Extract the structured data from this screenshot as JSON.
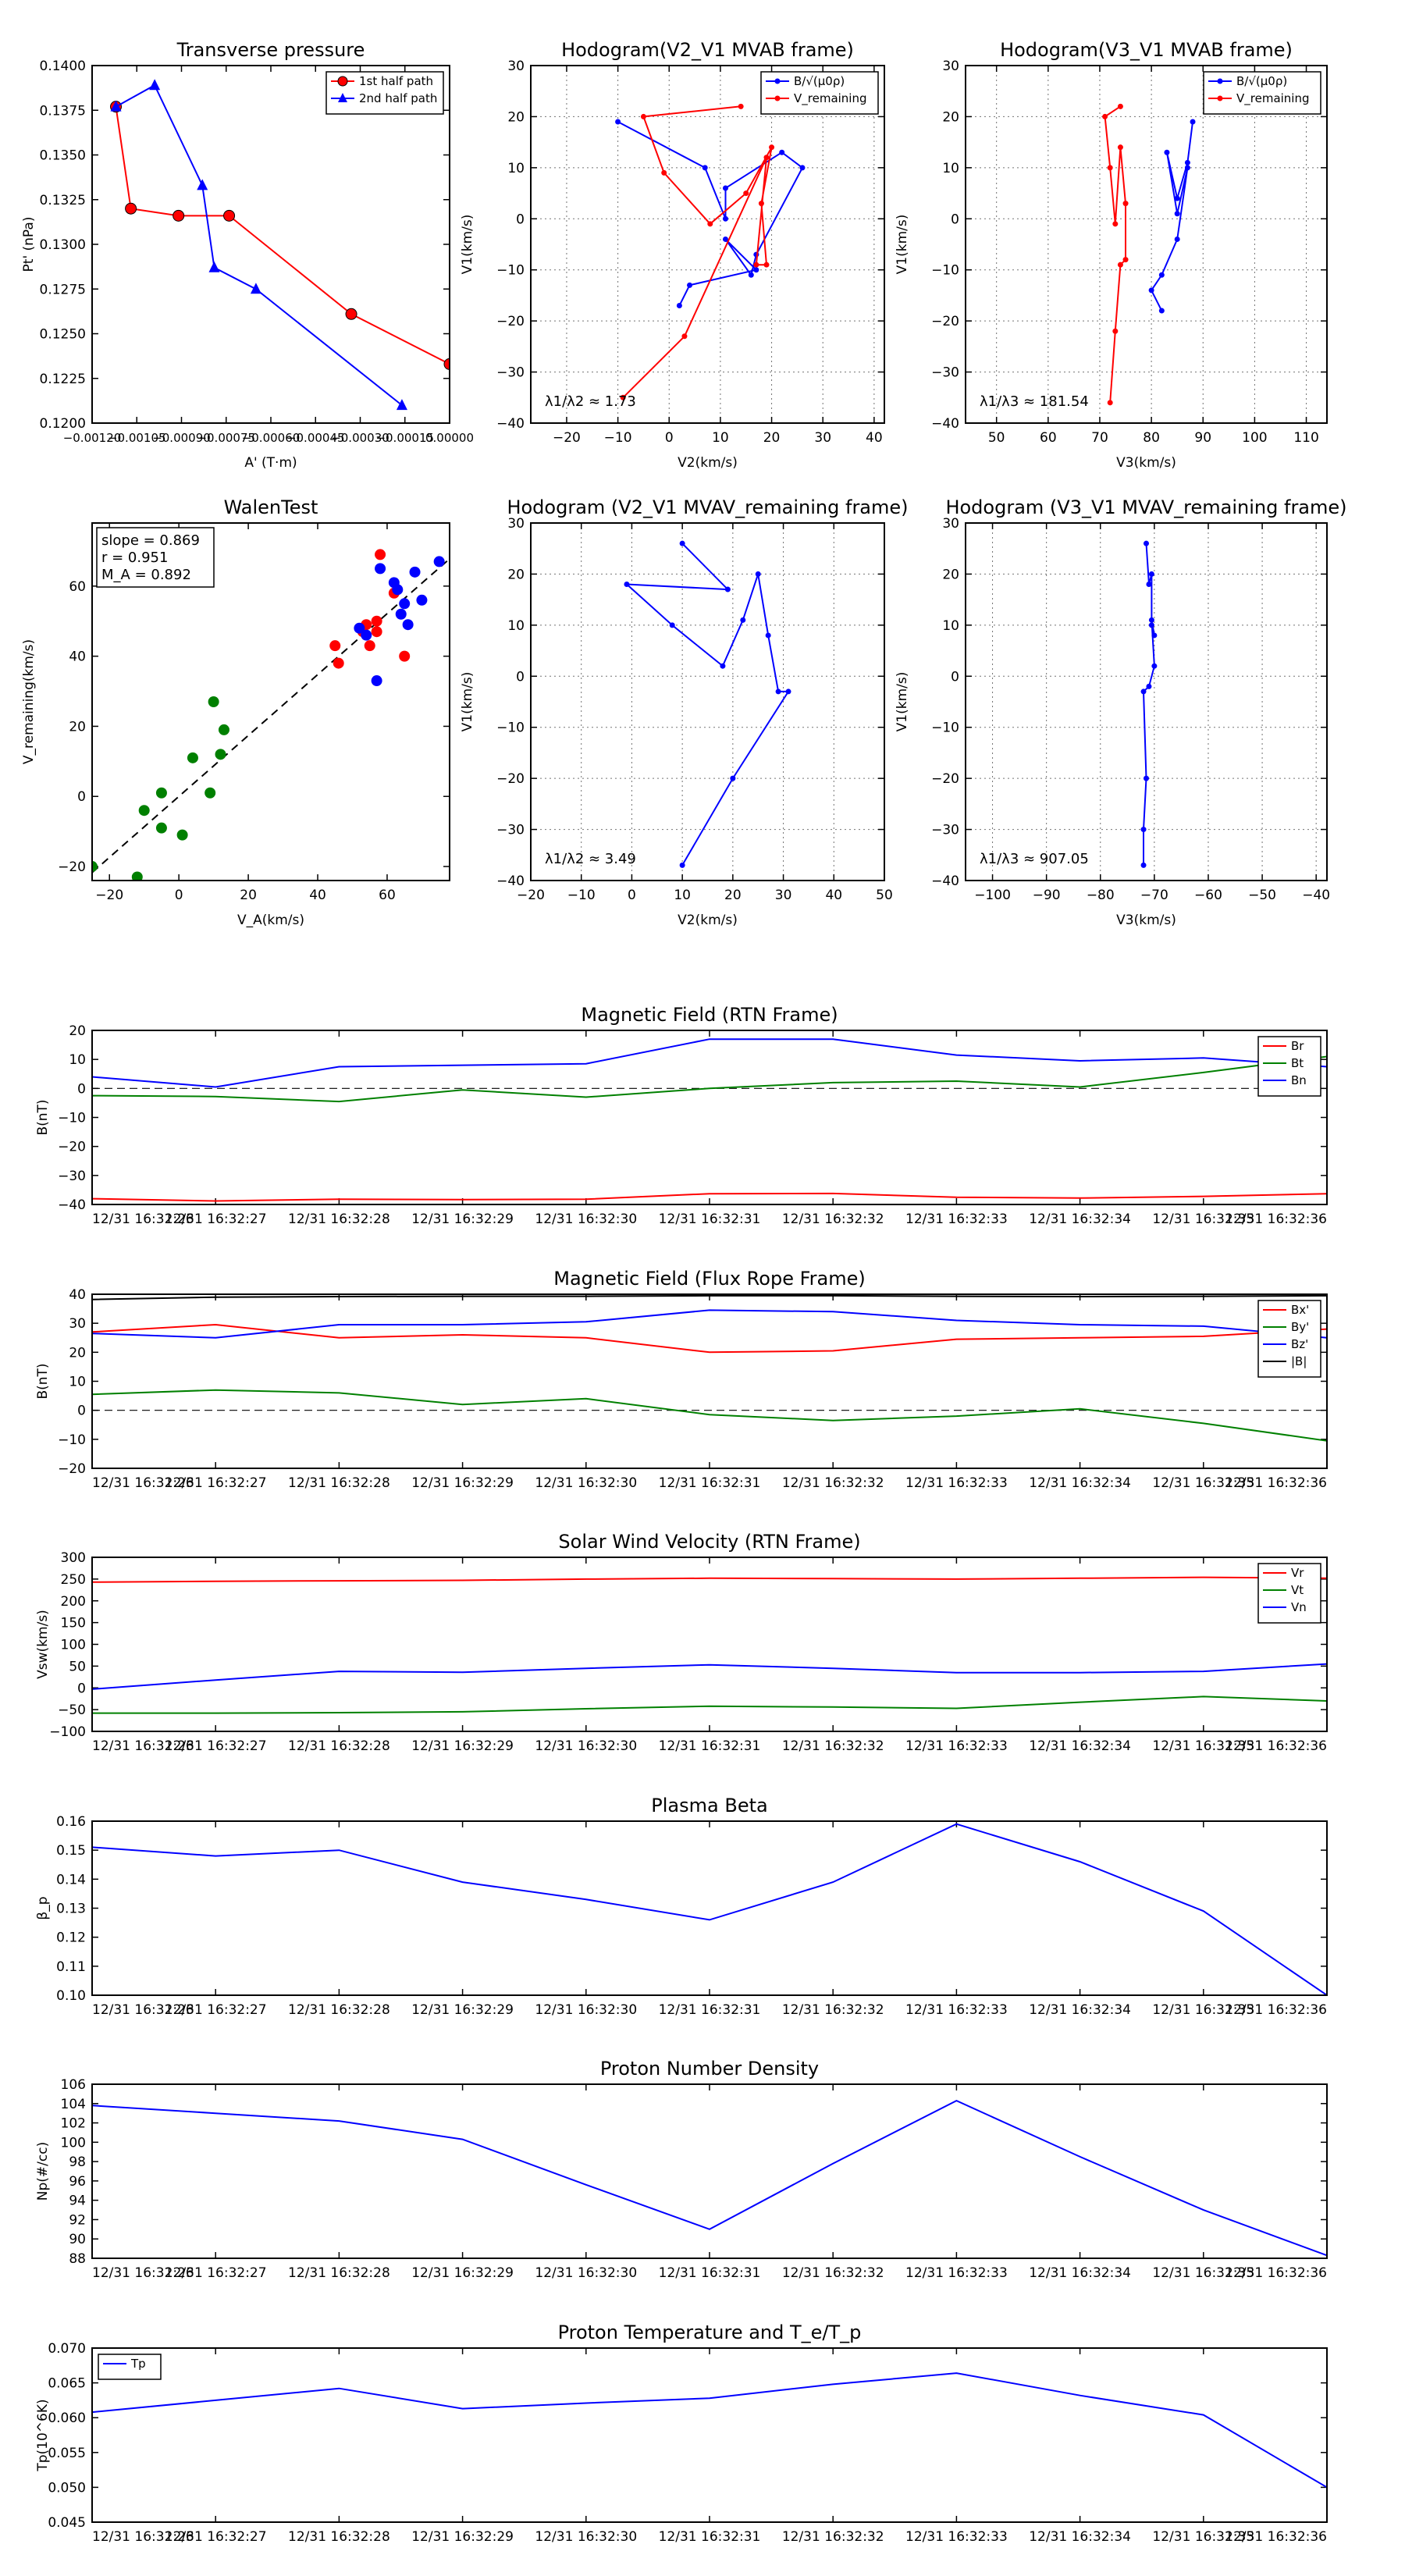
{
  "colors": {
    "red": "#ff0000",
    "green": "#008000",
    "blue": "#0000ff",
    "black": "#000000"
  },
  "chart_data": [
    {
      "id": "tp",
      "type": "line",
      "title": "Transverse pressure",
      "xlabel": "A' (T·m)",
      "ylabel": "Pt' (nPa)",
      "xlim": [
        -0.0012,
        0.0
      ],
      "ylim": [
        0.12,
        0.14
      ],
      "xticks": [
        -0.0012,
        -0.00105,
        -0.0009,
        -0.00075,
        -0.0006,
        -0.00045,
        -0.0003,
        -0.00015,
        0.0
      ],
      "xticklabels": [
        "−0.00120",
        "−0.00105",
        "−0.00090",
        "−0.00075",
        "−0.00060",
        "−0.00045",
        "−0.00030",
        "−0.00015",
        "0.00000"
      ],
      "yticks": [
        0.12,
        0.1225,
        0.125,
        0.1275,
        0.13,
        0.1325,
        0.135,
        0.1375,
        0.14
      ],
      "yticklabels": [
        "0.1200",
        "0.1225",
        "0.1250",
        "0.1275",
        "0.1300",
        "0.1325",
        "0.1350",
        "0.1375",
        "0.1400"
      ],
      "grid": false,
      "legend": "top-right",
      "series": [
        {
          "name": "1st half path",
          "color": "#ff0000",
          "marker": "circle",
          "x": [
            -0.00112,
            -0.00107,
            -0.00091,
            -0.00074,
            -0.00033,
            0.0
          ],
          "y": [
            0.1377,
            0.132,
            0.1316,
            0.1316,
            0.1261,
            0.1233
          ]
        },
        {
          "name": "2nd half path",
          "color": "#0000ff",
          "marker": "triangle",
          "x": [
            -0.00112,
            -0.00099,
            -0.00083,
            -0.00079,
            -0.00065,
            -0.00016
          ],
          "y": [
            0.1377,
            0.1389,
            0.1333,
            0.1287,
            0.1275,
            0.121
          ]
        }
      ]
    },
    {
      "id": "h1",
      "type": "line",
      "title": "Hodogram(V2_V1 MVAB frame)",
      "xlabel": "V2(km/s)",
      "ylabel": "V1(km/s)",
      "xlim": [
        -27,
        42
      ],
      "ylim": [
        -40,
        30
      ],
      "xticks": [
        -20,
        -10,
        0,
        10,
        20,
        30,
        40
      ],
      "yticks": [
        -40,
        -30,
        -20,
        -10,
        0,
        10,
        20,
        30
      ],
      "grid": true,
      "legend": "top-right",
      "annotation": "λ1/λ2 ≈ 1.73",
      "series": [
        {
          "name": "B/√(μ0ρ)",
          "color": "#0000ff",
          "marker": "dot",
          "x": [
            -10,
            7,
            11,
            11,
            22,
            26,
            17,
            16,
            11,
            17,
            4,
            2
          ],
          "y": [
            19,
            10,
            0,
            6,
            13,
            10,
            -7,
            -11,
            -4,
            -10,
            -13,
            -17
          ]
        },
        {
          "name": "V_remaining",
          "color": "#ff0000",
          "marker": "dot",
          "x": [
            14,
            -5,
            -1,
            8,
            15,
            20,
            18,
            19,
            17,
            19,
            3,
            -9
          ],
          "y": [
            22,
            20,
            9,
            -1,
            5,
            14,
            3,
            -9,
            -9,
            12,
            -23,
            -35
          ]
        }
      ]
    },
    {
      "id": "h2",
      "type": "line",
      "title": "Hodogram(V3_V1 MVAB frame)",
      "xlabel": "V3(km/s)",
      "ylabel": "V1(km/s)",
      "xlim": [
        44,
        114
      ],
      "ylim": [
        -40,
        30
      ],
      "xticks": [
        50,
        60,
        70,
        80,
        90,
        100,
        110
      ],
      "yticks": [
        -40,
        -30,
        -20,
        -10,
        0,
        10,
        20,
        30
      ],
      "grid": true,
      "legend": "top-right",
      "annotation": "λ1/λ3 ≈ 181.54",
      "series": [
        {
          "name": "B/√(μ0ρ)",
          "color": "#0000ff",
          "marker": "dot",
          "x": [
            88,
            87,
            85,
            83,
            85,
            87,
            85,
            82,
            80,
            82
          ],
          "y": [
            19,
            11,
            4,
            13,
            1,
            10,
            -4,
            -11,
            -14,
            -18
          ]
        },
        {
          "name": "V_remaining",
          "color": "#ff0000",
          "marker": "dot",
          "x": [
            74,
            71,
            72,
            73,
            74,
            75,
            75,
            74,
            73,
            72
          ],
          "y": [
            22,
            20,
            10,
            -1,
            14,
            3,
            -8,
            -9,
            -22,
            -36
          ]
        }
      ]
    },
    {
      "id": "walen",
      "type": "scatter",
      "title": "WalenTest",
      "xlabel": "V_A(km/s)",
      "ylabel": "V_remaining(km/s)",
      "xlim": [
        -25,
        78
      ],
      "ylim": [
        -24,
        78
      ],
      "xticks": [
        -20,
        0,
        20,
        40,
        60
      ],
      "yticks": [
        -20,
        0,
        20,
        40,
        60
      ],
      "grid": false,
      "stats": [
        "slope = 0.869",
        "r = 0.951",
        "M_A = 0.892"
      ],
      "fit": {
        "slope": 0.869,
        "intercept": 0,
        "color": "#000000"
      },
      "series": [
        {
          "name": "green",
          "color": "#008000",
          "x": [
            -25,
            -12,
            -10,
            -5,
            -5,
            1,
            4,
            9,
            10,
            12,
            13
          ],
          "y": [
            -20,
            -23,
            -4,
            1,
            -9,
            -11,
            11,
            1,
            27,
            12,
            19
          ]
        },
        {
          "name": "red",
          "color": "#ff0000",
          "x": [
            45,
            46,
            53,
            54,
            55,
            57,
            57,
            58,
            62,
            65
          ],
          "y": [
            43,
            38,
            47,
            49,
            43,
            47,
            50,
            69,
            58,
            40
          ]
        },
        {
          "name": "blue",
          "color": "#0000ff",
          "x": [
            52,
            54,
            57,
            58,
            62,
            63,
            64,
            65,
            66,
            68,
            70,
            75
          ],
          "y": [
            48,
            46,
            33,
            65,
            61,
            59,
            52,
            55,
            49,
            64,
            56,
            67
          ]
        }
      ]
    },
    {
      "id": "h3",
      "type": "line",
      "title": "Hodogram (V2_V1 MVAV_remaining frame)",
      "xlabel": "V2(km/s)",
      "ylabel": "V1(km/s)",
      "xlim": [
        -20,
        50
      ],
      "ylim": [
        -40,
        30
      ],
      "xticks": [
        -20,
        -10,
        0,
        10,
        20,
        30,
        40,
        50
      ],
      "yticks": [
        -40,
        -30,
        -20,
        -10,
        0,
        10,
        20,
        30
      ],
      "grid": true,
      "annotation": "λ1/λ2 ≈ 3.49",
      "series": [
        {
          "name": "blue",
          "color": "#0000ff",
          "marker": "dot",
          "x": [
            10,
            19,
            -1,
            8,
            18,
            22,
            25,
            27,
            29,
            31,
            20,
            10
          ],
          "y": [
            26,
            17,
            18,
            10,
            2,
            11,
            20,
            8,
            -3,
            -3,
            -20,
            -37
          ]
        }
      ]
    },
    {
      "id": "h4",
      "type": "line",
      "title": "Hodogram (V3_V1 MVAV_remaining frame)",
      "xlabel": "V3(km/s)",
      "ylabel": "V1(km/s)",
      "xlim": [
        -105,
        -38
      ],
      "ylim": [
        -40,
        30
      ],
      "xticks": [
        -100,
        -90,
        -80,
        -70,
        -60,
        -50,
        -40
      ],
      "yticks": [
        -40,
        -30,
        -20,
        -10,
        0,
        10,
        20,
        30
      ],
      "grid": true,
      "annotation": "λ1/λ3 ≈ 907.05",
      "series": [
        {
          "name": "blue",
          "color": "#0000ff",
          "marker": "dot",
          "x": [
            -71.5,
            -71,
            -70.5,
            -70.5,
            -70,
            -70.5,
            -70,
            -71,
            -72,
            -71.5,
            -72,
            -72
          ],
          "y": [
            26,
            18,
            20,
            10,
            8,
            11,
            2,
            -2,
            -3,
            -20,
            -30,
            -37
          ]
        }
      ]
    },
    {
      "id": "b_rtn",
      "type": "line",
      "title": "Magnetic Field (RTN Frame)",
      "xlabel": "",
      "ylabel": "B(nT)",
      "ylim": [
        -40,
        20
      ],
      "yticks": [
        -40,
        -30,
        -20,
        -10,
        0,
        10,
        20
      ],
      "zero_line": true,
      "grid": false,
      "legend": "top-right",
      "series": [
        {
          "name": "Br",
          "color": "#ff0000",
          "values": [
            -38,
            -38.8,
            -38.2,
            -38.3,
            -38.2,
            -36.3,
            -36.2,
            -37.5,
            -37.8,
            -37.2,
            -36.3
          ]
        },
        {
          "name": "Bt",
          "color": "#008000",
          "values": [
            -2.5,
            -2.8,
            -4.5,
            -0.5,
            -3,
            0,
            2,
            2.5,
            0.5,
            5.5,
            11
          ]
        },
        {
          "name": "Bn",
          "color": "#0000ff",
          "values": [
            4,
            0.5,
            7.5,
            8,
            8.5,
            17,
            17,
            11.5,
            9.5,
            10.5,
            7.5
          ]
        }
      ]
    },
    {
      "id": "b_fr",
      "type": "line",
      "title": "Magnetic Field (Flux Rope Frame)",
      "xlabel": "",
      "ylabel": "B(nT)",
      "ylim": [
        -20,
        40
      ],
      "yticks": [
        -20,
        -10,
        0,
        10,
        20,
        30,
        40
      ],
      "zero_line": true,
      "grid": false,
      "legend": "top-right",
      "series": [
        {
          "name": "Bx'",
          "color": "#ff0000",
          "values": [
            27,
            29.5,
            25,
            26,
            25,
            20,
            20.5,
            24.5,
            25,
            25.5,
            28
          ]
        },
        {
          "name": "By'",
          "color": "#008000",
          "values": [
            5.5,
            7,
            6,
            2,
            4,
            -1.5,
            -3.5,
            -2,
            0.5,
            -4.5,
            -10.5
          ]
        },
        {
          "name": "Bz'",
          "color": "#0000ff",
          "values": [
            26.5,
            25,
            29.5,
            29.5,
            30.5,
            34.5,
            34,
            31,
            29.5,
            29,
            25
          ]
        },
        {
          "name": "|B|",
          "color": "#000000",
          "values": [
            38.2,
            39,
            39.2,
            39.3,
            39.3,
            39.5,
            39.5,
            39.3,
            39.2,
            39.3,
            39.5
          ]
        }
      ]
    },
    {
      "id": "vsw",
      "type": "line",
      "title": "Solar Wind Velocity (RTN Frame)",
      "xlabel": "",
      "ylabel": "Vsw(km/s)",
      "ylim": [
        -100,
        300
      ],
      "yticks": [
        -100,
        -50,
        0,
        50,
        100,
        150,
        200,
        250,
        300
      ],
      "grid": false,
      "legend": "top-right",
      "series": [
        {
          "name": "Vr",
          "color": "#ff0000",
          "values": [
            243,
            245,
            246,
            247,
            250,
            252,
            251,
            250,
            252,
            254,
            252
          ]
        },
        {
          "name": "Vt",
          "color": "#008000",
          "values": [
            -58,
            -58,
            -57,
            -55,
            -48,
            -42,
            -44,
            -47,
            -33,
            -20,
            -30
          ]
        },
        {
          "name": "Vn",
          "color": "#0000ff",
          "values": [
            -3,
            18,
            38,
            36,
            45,
            53,
            45,
            35,
            35,
            38,
            55
          ]
        }
      ]
    },
    {
      "id": "beta",
      "type": "line",
      "title": "Plasma Beta",
      "xlabel": "",
      "ylabel": "β_p",
      "ylim": [
        0.1,
        0.16
      ],
      "yticks": [
        0.1,
        0.11,
        0.12,
        0.13,
        0.14,
        0.15,
        0.16
      ],
      "yticklabels": [
        "0.10",
        "0.11",
        "0.12",
        "0.13",
        "0.14",
        "0.15",
        "0.16"
      ],
      "grid": false,
      "series": [
        {
          "name": "beta",
          "color": "#0000ff",
          "values": [
            0.151,
            0.148,
            0.15,
            0.139,
            0.133,
            0.126,
            0.139,
            0.159,
            0.146,
            0.129,
            0.1
          ]
        }
      ]
    },
    {
      "id": "np",
      "type": "line",
      "title": "Proton Number Density",
      "xlabel": "",
      "ylabel": "Np(#/cc)",
      "ylim": [
        88,
        106
      ],
      "yticks": [
        88,
        90,
        92,
        94,
        96,
        98,
        100,
        102,
        104,
        106
      ],
      "grid": false,
      "series": [
        {
          "name": "Np",
          "color": "#0000ff",
          "values": [
            103.8,
            103,
            102.2,
            100.3,
            95.6,
            91,
            97.8,
            104.3,
            98.5,
            93,
            88.3
          ]
        }
      ]
    },
    {
      "id": "tp_temp",
      "type": "line",
      "title": "Proton Temperature and T_e/T_p",
      "xlabel": "",
      "ylabel": "Tp(10^6K)",
      "ylim": [
        0.045,
        0.07
      ],
      "yticks": [
        0.045,
        0.05,
        0.055,
        0.06,
        0.065,
        0.07
      ],
      "yticklabels": [
        "0.045",
        "0.050",
        "0.055",
        "0.060",
        "0.065",
        "0.070"
      ],
      "grid": false,
      "legend": "top-left",
      "series": [
        {
          "name": "Tp",
          "color": "#0000ff",
          "values": [
            0.0608,
            0.0625,
            0.0642,
            0.0613,
            0.0621,
            0.0628,
            0.0648,
            0.0664,
            0.0632,
            0.0604,
            0.05
          ]
        }
      ]
    }
  ],
  "time_labels": [
    "12/31 16:32:26",
    "12/31 16:32:27",
    "12/31 16:32:28",
    "12/31 16:32:29",
    "12/31 16:32:30",
    "12/31 16:32:31",
    "12/31 16:32:32",
    "12/31 16:32:33",
    "12/31 16:32:34",
    "12/31 16:32:35",
    "12/31 16:32:36"
  ]
}
